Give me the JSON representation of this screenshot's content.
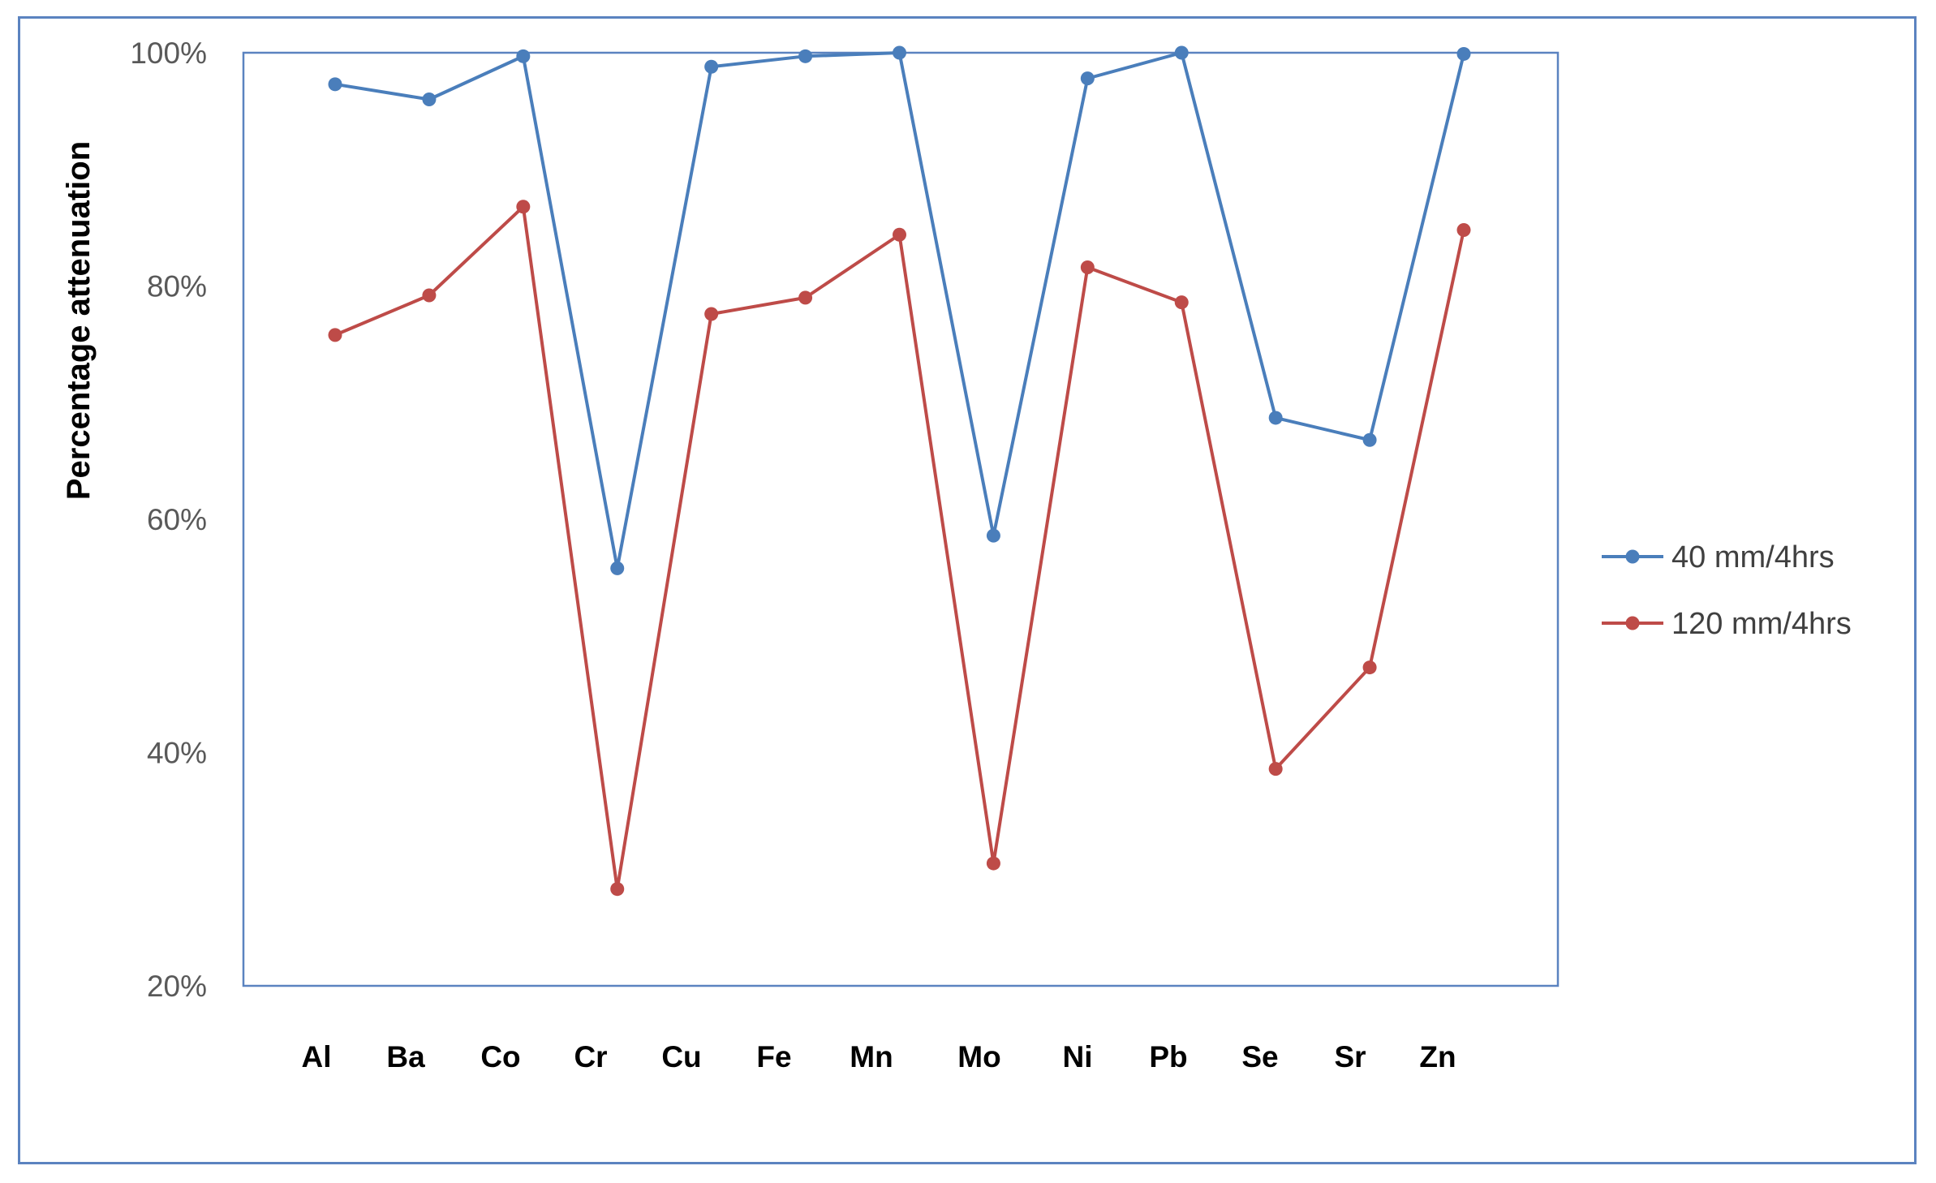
{
  "chart_data": {
    "type": "line",
    "title": "",
    "xlabel": "",
    "ylabel": "Percentage attenuation",
    "ylim": [
      20,
      100
    ],
    "yticks": [
      "20%",
      "40%",
      "60%",
      "80%",
      "100%"
    ],
    "ytick_values": [
      20,
      40,
      60,
      80,
      100
    ],
    "categories": [
      "Al",
      "Ba",
      "Co",
      "Cr",
      "Cu",
      "Fe",
      "Mn",
      "Mo",
      "Ni",
      "Pb",
      "Se",
      "Sr",
      "Zn"
    ],
    "series": [
      {
        "name": "40 mm/4hrs",
        "color": "#4a7ebb",
        "values": [
          97.3,
          96.0,
          99.7,
          55.8,
          98.8,
          99.7,
          100.0,
          58.6,
          97.8,
          100.0,
          68.7,
          66.8,
          99.9
        ]
      },
      {
        "name": "120 mm/4hrs",
        "color": "#be4b48",
        "values": [
          75.8,
          79.2,
          86.8,
          28.3,
          77.6,
          79.0,
          84.4,
          30.5,
          81.6,
          78.6,
          38.6,
          47.3,
          84.8
        ]
      }
    ],
    "grid": false,
    "legend": "right"
  }
}
